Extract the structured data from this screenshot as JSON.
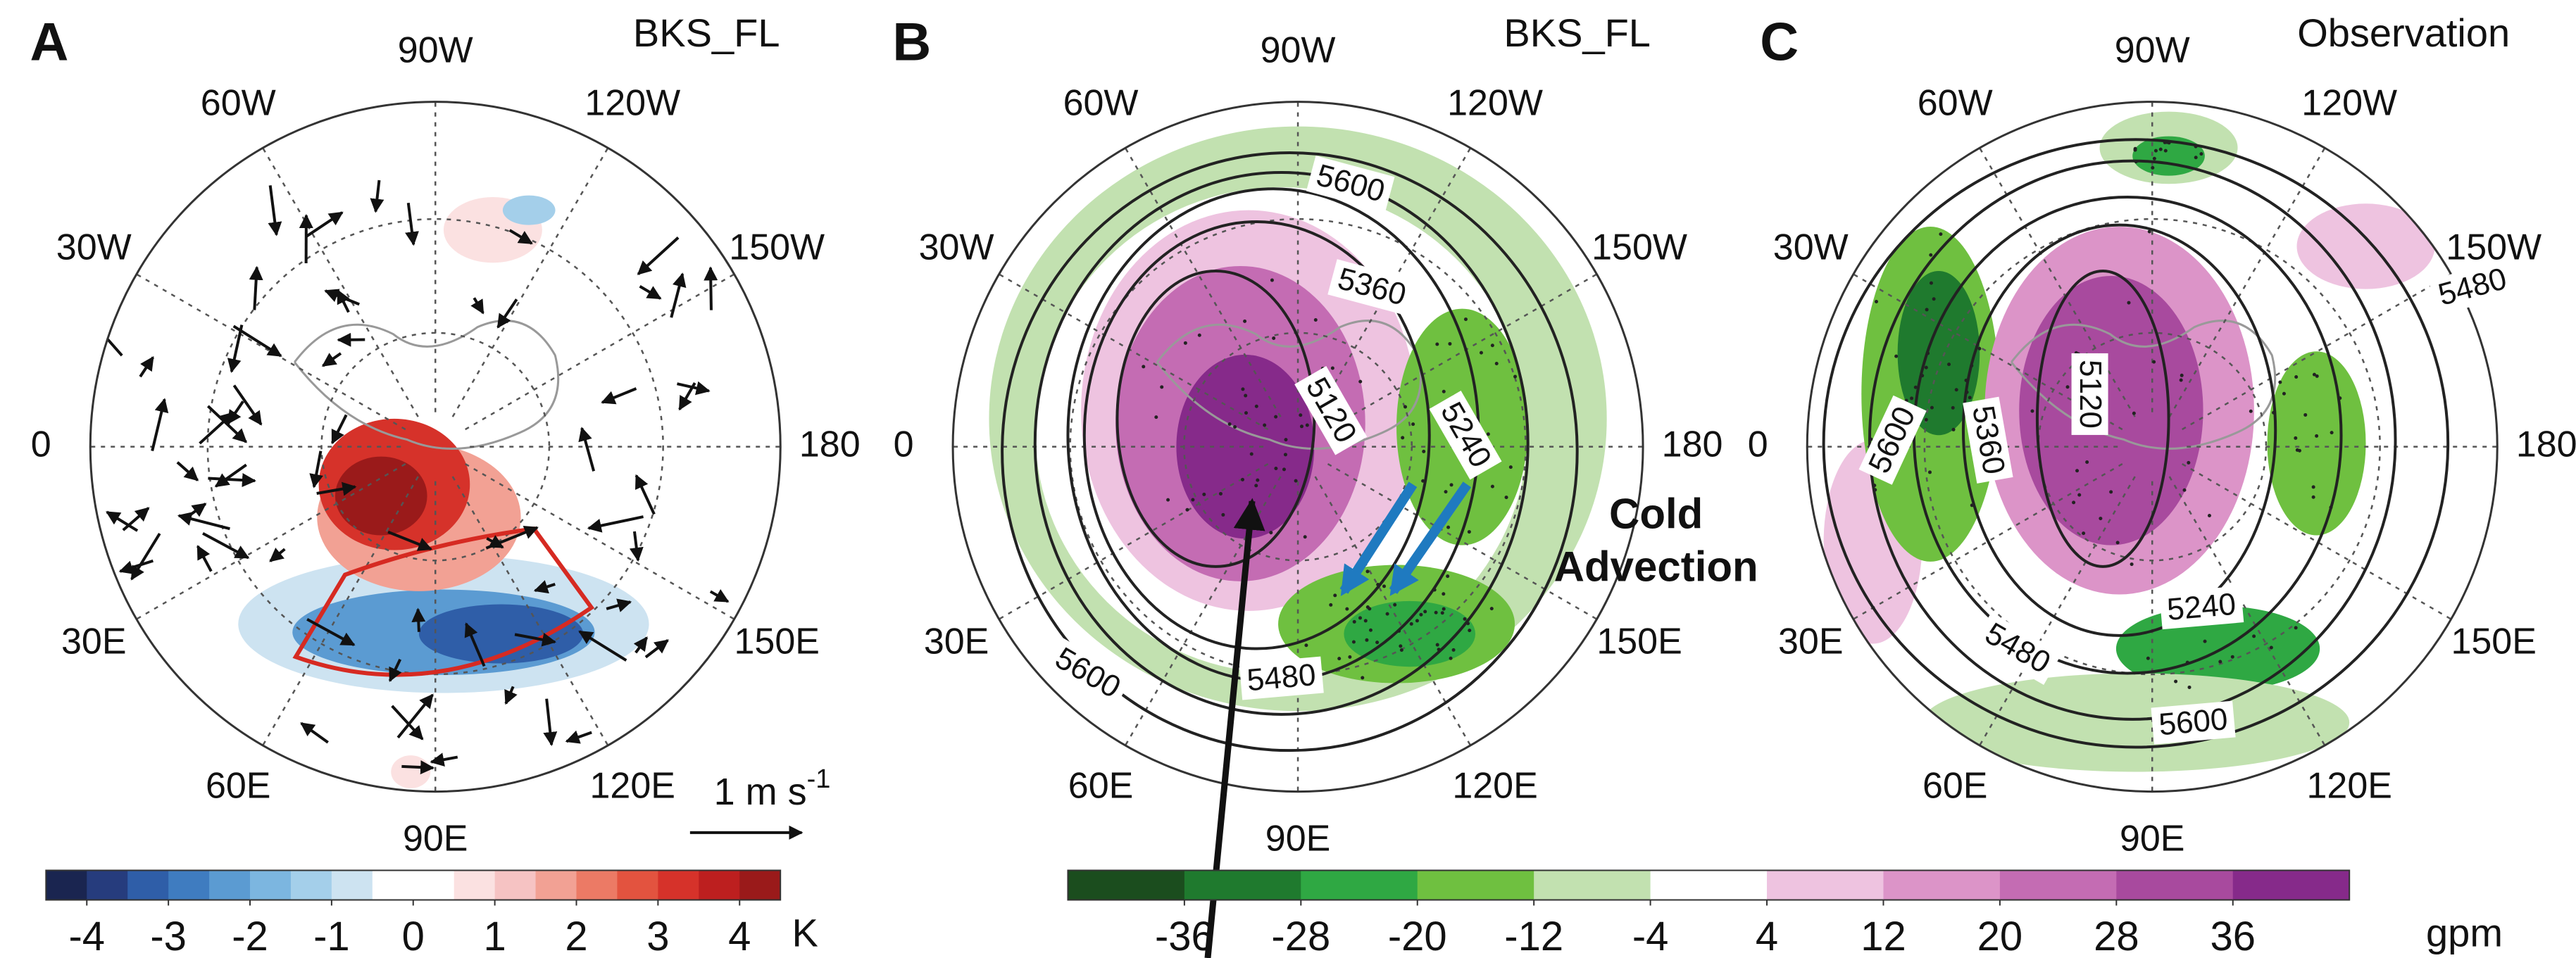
{
  "panels": [
    {
      "letter": "A",
      "title": "BKS_FL",
      "longitudes": [
        "90W",
        "120W",
        "150W",
        "180",
        "150E",
        "120E",
        "90E",
        "60E",
        "30E",
        "0",
        "30W",
        "60W"
      ],
      "contour_labels": []
    },
    {
      "letter": "B",
      "title": "BKS_FL",
      "longitudes": [
        "90W",
        "120W",
        "150W",
        "180",
        "150E",
        "120E",
        "90E",
        "60E",
        "30E",
        "0",
        "30W",
        "60W"
      ],
      "contour_labels": [
        5600,
        5360,
        5120,
        5240,
        5600,
        5480
      ]
    },
    {
      "letter": "C",
      "title": "Observation",
      "longitudes": [
        "90W",
        "120W",
        "150W",
        "180",
        "150E",
        "120E",
        "90E",
        "60E",
        "30E",
        "0",
        "30W",
        "60W"
      ],
      "contour_labels": [
        5480,
        5600,
        5360,
        5120,
        5240,
        5480,
        5600
      ]
    }
  ],
  "wind_scale": {
    "label": "1 m s",
    "exponent": "-1"
  },
  "annotation": {
    "lines": [
      "Cold",
      "Advection"
    ]
  },
  "colorbars": [
    {
      "ticks": [
        -4,
        -3,
        -2,
        -1,
        0,
        1,
        2,
        3,
        4
      ],
      "unit": "K",
      "lim": [
        -4.5,
        4.5
      ],
      "colors": [
        "#1a2550",
        "#263c7d",
        "#2f5ea8",
        "#3f7cc0",
        "#5b9bd2",
        "#7cb6e0",
        "#a4cfea",
        "#cde3f1",
        "#ffffff",
        "#ffffff",
        "#fbe1e1",
        "#f6c3c3",
        "#f2a194",
        "#ec7a65",
        "#e3533f",
        "#d6322a",
        "#bd1f1f",
        "#9a1a1a"
      ]
    },
    {
      "ticks": [
        -36,
        -28,
        -20,
        -12,
        -4,
        4,
        12,
        20,
        28,
        36
      ],
      "unit": "gpm",
      "lim": [
        -44,
        44
      ],
      "colors": [
        "#1b4d1e",
        "#1f7a2e",
        "#2fa843",
        "#6fc040",
        "#c2e1b0",
        "#ffffff",
        "#eec3e0",
        "#dc94c8",
        "#c46cb3",
        "#a84a9e",
        "#862a8a"
      ]
    }
  ]
}
